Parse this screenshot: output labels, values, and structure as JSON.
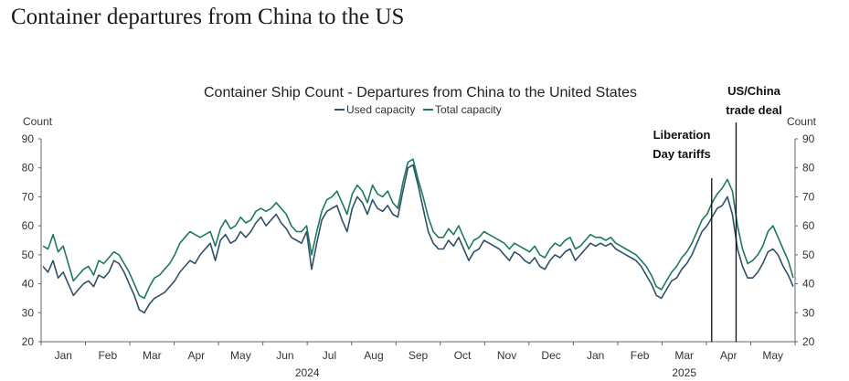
{
  "page": {
    "title": "Container departures from China to the US"
  },
  "chart_data": {
    "type": "line",
    "title": "Container Ship Count - Departures from China to the United States",
    "ylabel_left": "Count",
    "ylabel_right": "Count",
    "ylim": [
      20,
      90
    ],
    "yticks": [
      20,
      30,
      40,
      50,
      60,
      70,
      80,
      90
    ],
    "x_month_labels": [
      "Jan",
      "Feb",
      "Mar",
      "Apr",
      "May",
      "Jun",
      "Jul",
      "Aug",
      "Sep",
      "Oct",
      "Nov",
      "Dec",
      "Jan",
      "Feb",
      "Mar",
      "Apr",
      "May"
    ],
    "year_labels": [
      "2024",
      "2025"
    ],
    "grid": false,
    "legend_position": "top-center",
    "series": [
      {
        "name": "Used capacity",
        "color": "#2f5068",
        "values": [
          46,
          44,
          48,
          42,
          44,
          40,
          36,
          38,
          40,
          41,
          39,
          43,
          42,
          44,
          48,
          47,
          44,
          40,
          36,
          31,
          30,
          33,
          35,
          36,
          37,
          39,
          41,
          44,
          46,
          48,
          47,
          50,
          52,
          54,
          48,
          55,
          57,
          54,
          55,
          58,
          56,
          58,
          61,
          63,
          60,
          62,
          64,
          61,
          59,
          56,
          55,
          54,
          58,
          45,
          54,
          62,
          65,
          66,
          67,
          62,
          58,
          66,
          70,
          68,
          64,
          69,
          66,
          65,
          67,
          64,
          63,
          72,
          80,
          81,
          74,
          66,
          58,
          54,
          52,
          52,
          55,
          53,
          56,
          52,
          48,
          51,
          52,
          55,
          54,
          53,
          52,
          50,
          48,
          51,
          50,
          48,
          47,
          49,
          46,
          45,
          48,
          50,
          49,
          51,
          52,
          48,
          50,
          52,
          54,
          53,
          54,
          53,
          54,
          52,
          51,
          50,
          49,
          48,
          46,
          43,
          40,
          36,
          35,
          38,
          41,
          42,
          45,
          47,
          50,
          54,
          58,
          60,
          63,
          66,
          67,
          70,
          64,
          52,
          46,
          42,
          42,
          44,
          47,
          51,
          52,
          50,
          46,
          43,
          39
        ]
      },
      {
        "name": "Total capacity",
        "color": "#1d7a5c",
        "values": [
          53,
          52,
          57,
          51,
          53,
          47,
          41,
          43,
          45,
          46,
          43,
          48,
          47,
          49,
          51,
          50,
          47,
          44,
          40,
          36,
          35,
          39,
          42,
          43,
          45,
          47,
          50,
          54,
          56,
          58,
          57,
          56,
          57,
          58,
          53,
          59,
          62,
          59,
          60,
          63,
          61,
          62,
          65,
          66,
          65,
          66,
          68,
          66,
          64,
          60,
          58,
          58,
          60,
          50,
          58,
          65,
          69,
          70,
          72,
          68,
          64,
          71,
          74,
          72,
          68,
          74,
          71,
          70,
          72,
          68,
          66,
          75,
          82,
          83,
          76,
          70,
          63,
          58,
          56,
          56,
          59,
          57,
          60,
          56,
          52,
          55,
          56,
          58,
          57,
          56,
          55,
          54,
          52,
          54,
          53,
          52,
          51,
          53,
          50,
          49,
          52,
          54,
          53,
          55,
          56,
          52,
          53,
          55,
          57,
          56,
          56,
          55,
          56,
          54,
          53,
          52,
          51,
          50,
          48,
          46,
          43,
          39,
          38,
          41,
          44,
          46,
          49,
          51,
          54,
          58,
          62,
          64,
          68,
          71,
          73,
          76,
          72,
          60,
          52,
          47,
          48,
          50,
          53,
          58,
          60,
          56,
          52,
          48,
          42
        ]
      }
    ],
    "annotations": [
      {
        "label_lines": [
          "Liberation",
          "Day tariffs"
        ]
      },
      {
        "label_lines": [
          "US/China",
          "trade deal"
        ]
      }
    ]
  }
}
